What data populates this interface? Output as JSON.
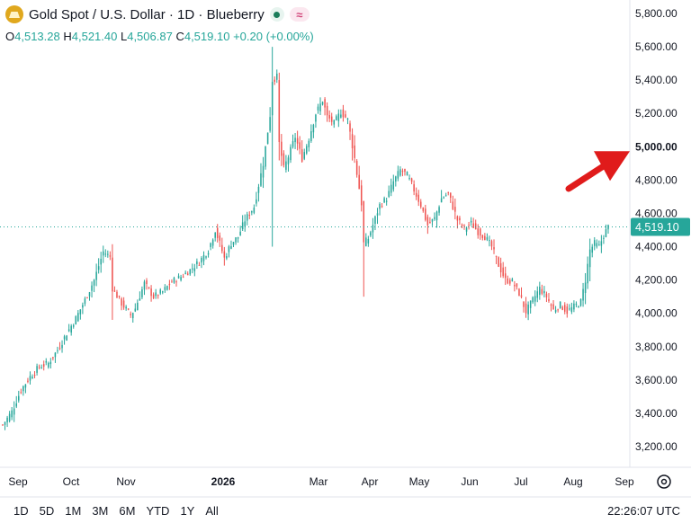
{
  "header": {
    "title": "Gold Spot / U.S. Dollar · 1D · Blueberry",
    "wave_symbol": "≈"
  },
  "ohlc": {
    "open_key": "O",
    "open": "4,513.28",
    "high_key": "H",
    "high": "4,521.40",
    "low_key": "L",
    "low": "4,506.87",
    "close_key": "C",
    "close": "4,519.10",
    "change": "+0.20 (+0.00%)"
  },
  "range_buttons": [
    "1D",
    "5D",
    "1M",
    "3M",
    "6M",
    "YTD",
    "1Y",
    "All"
  ],
  "clock": "22:26:07 UTC",
  "colors": {
    "up": "#26a69a",
    "down": "#ef5350",
    "price_tag": "#26a69a",
    "arrow": "#e01b1b"
  },
  "icons": [
    "gold-coin-icon",
    "market-status-icon",
    "wave-icon",
    "settings-icon",
    "red-arrow-icon"
  ],
  "chart_data": {
    "type": "candlestick",
    "ylim": [
      3150,
      5850
    ],
    "y_ticks": [
      "3,200.00",
      "3,400.00",
      "3,600.00",
      "3,800.00",
      "4,000.00",
      "4,200.00",
      "4,400.00",
      "4,600.00",
      "4,800.00",
      "5,000.00",
      "5,200.00",
      "5,400.00",
      "5,600.00",
      "5,800.00"
    ],
    "highlight_tick": "5,000.00",
    "x_labels": [
      "Sep",
      "Oct",
      "Nov",
      "2026",
      "Mar",
      "Apr",
      "May",
      "Jun",
      "Jul",
      "Aug",
      "Sep"
    ],
    "last_price": "4,519.10",
    "price_anchors": [
      [
        0,
        3330
      ],
      [
        4,
        3410
      ],
      [
        8,
        3540
      ],
      [
        12,
        3620
      ],
      [
        16,
        3680
      ],
      [
        20,
        3700
      ],
      [
        24,
        3780
      ],
      [
        28,
        3880
      ],
      [
        32,
        3970
      ],
      [
        36,
        4080
      ],
      [
        40,
        4200
      ],
      [
        44,
        4370
      ],
      [
        47,
        4340
      ],
      [
        48,
        4150
      ],
      [
        52,
        4060
      ],
      [
        56,
        3990
      ],
      [
        58,
        4030
      ],
      [
        62,
        4180
      ],
      [
        66,
        4100
      ],
      [
        70,
        4130
      ],
      [
        74,
        4190
      ],
      [
        78,
        4220
      ],
      [
        82,
        4260
      ],
      [
        86,
        4310
      ],
      [
        90,
        4380
      ],
      [
        93,
        4500
      ],
      [
        95,
        4420
      ],
      [
        97,
        4330
      ],
      [
        100,
        4420
      ],
      [
        103,
        4460
      ],
      [
        106,
        4560
      ],
      [
        110,
        4640
      ],
      [
        114,
        4900
      ],
      [
        117,
        5190
      ],
      [
        118,
        5400
      ],
      [
        120,
        5420
      ],
      [
        121,
        5020
      ],
      [
        123,
        4870
      ],
      [
        125,
        4940
      ],
      [
        128,
        5060
      ],
      [
        131,
        4930
      ],
      [
        134,
        5050
      ],
      [
        137,
        5200
      ],
      [
        140,
        5280
      ],
      [
        142,
        5180
      ],
      [
        145,
        5140
      ],
      [
        148,
        5210
      ],
      [
        151,
        5160
      ],
      [
        154,
        4930
      ],
      [
        157,
        4660
      ],
      [
        158,
        4420
      ],
      [
        160,
        4450
      ],
      [
        162,
        4530
      ],
      [
        165,
        4650
      ],
      [
        168,
        4690
      ],
      [
        171,
        4790
      ],
      [
        174,
        4860
      ],
      [
        177,
        4830
      ],
      [
        180,
        4740
      ],
      [
        183,
        4650
      ],
      [
        186,
        4530
      ],
      [
        189,
        4570
      ],
      [
        192,
        4690
      ],
      [
        195,
        4720
      ],
      [
        197,
        4640
      ],
      [
        199,
        4560
      ],
      [
        202,
        4510
      ],
      [
        205,
        4540
      ],
      [
        208,
        4490
      ],
      [
        211,
        4460
      ],
      [
        214,
        4400
      ],
      [
        217,
        4290
      ],
      [
        220,
        4200
      ],
      [
        223,
        4190
      ],
      [
        226,
        4120
      ],
      [
        229,
        4010
      ],
      [
        232,
        4080
      ],
      [
        235,
        4150
      ],
      [
        238,
        4100
      ],
      [
        241,
        4020
      ],
      [
        244,
        4050
      ],
      [
        247,
        4010
      ],
      [
        250,
        4040
      ],
      [
        253,
        4070
      ],
      [
        255,
        4200
      ],
      [
        257,
        4380
      ],
      [
        259,
        4420
      ],
      [
        261,
        4400
      ],
      [
        263,
        4470
      ],
      [
        265,
        4519
      ]
    ],
    "spikes": [
      {
        "index": 118,
        "high": 5600,
        "low": 4400
      },
      {
        "index": 158,
        "high": 4600,
        "low": 4100
      }
    ]
  }
}
